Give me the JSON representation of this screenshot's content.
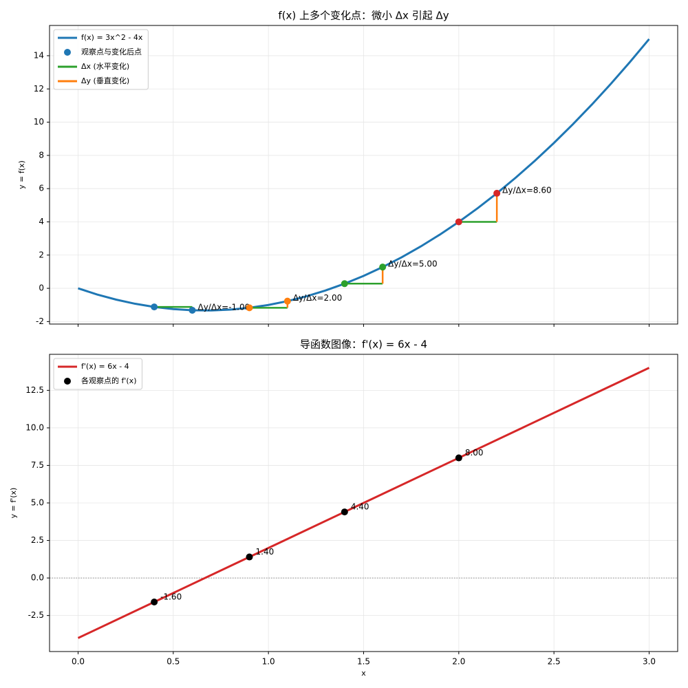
{
  "chart_data": [
    {
      "type": "line",
      "title": "f(x) 上多个变化点：微小 Δx 引起 Δy",
      "ylabel": "y = f(x)",
      "xlim": [
        -0.15,
        3.15
      ],
      "ylim": [
        -2.15,
        15.82
      ],
      "xticks": [
        0,
        0.5,
        1,
        1.5,
        2,
        2.5,
        3
      ],
      "show_xticklabels": false,
      "yticks": [
        -2,
        0,
        2,
        4,
        6,
        8,
        10,
        12,
        14
      ],
      "grid": true,
      "legend": "upper left",
      "series": [
        {
          "name": "f(x) = 3x^2 - 4x",
          "color": "#1f77b4",
          "x": [
            0,
            0.1,
            0.2,
            0.3,
            0.4,
            0.5,
            0.6,
            0.7,
            0.8,
            0.9,
            1,
            1.1,
            1.2,
            1.3,
            1.4,
            1.5,
            1.6,
            1.7,
            1.8,
            1.9,
            2,
            2.1,
            2.2,
            2.3,
            2.4,
            2.5,
            2.6,
            2.7,
            2.8,
            2.9,
            3
          ],
          "values": [
            0,
            -0.37,
            -0.68,
            -0.93,
            -1.12,
            -1.25,
            -1.32,
            -1.33,
            -1.28,
            -1.17,
            -1,
            -0.77,
            -0.48,
            -0.13,
            0.28,
            0.75,
            1.28,
            1.87,
            2.52,
            3.23,
            4,
            4.83,
            5.72,
            6.67,
            7.68,
            8.75,
            9.88,
            11.07,
            12.32,
            13.63,
            15
          ]
        }
      ],
      "points": {
        "name": "观察点与变化后点",
        "color": "#1f77b4",
        "colors": [
          "#1f77b4",
          "#ff7f0e",
          "#2ca02c",
          "#d62728"
        ],
        "x0": [
          0.4,
          0.9,
          1.4,
          2.0
        ],
        "y0": [
          -1.12,
          -1.17,
          0.28,
          4
        ],
        "x1": [
          0.6,
          1.1,
          1.6,
          2.2
        ],
        "y1": [
          -1.32,
          -0.77,
          1.28,
          5.72
        ]
      },
      "dx_line": {
        "name": "Δx (水平变化)",
        "color": "#2ca02c"
      },
      "dy_line": {
        "name": "Δy (垂直变化)",
        "color": "#ff7f0e"
      },
      "slopes": {
        "values": [
          -1,
          2,
          5,
          8.6
        ],
        "value_labels": [
          "Δy/Δx=-1.00",
          "Δy/Δx=2.00",
          "Δy/Δx=5.00",
          "Δy/Δx=8.60"
        ]
      }
    },
    {
      "type": "line",
      "title": "导函数图像：f'(x) = 6x - 4",
      "xlabel": "x",
      "ylabel": "y = f'(x)",
      "xlim": [
        -0.15,
        3.15
      ],
      "ylim": [
        -4.9,
        14.9
      ],
      "xticks": [
        {
          "value": 0,
          "label": "0.0"
        },
        0.5,
        {
          "value": 1,
          "label": "1.0"
        },
        1.5,
        {
          "value": 2,
          "label": "2.0"
        },
        2.5,
        {
          "value": 3,
          "label": "3.0"
        }
      ],
      "show_xticklabels": true,
      "yticks": [
        -2.5,
        {
          "value": 0,
          "label": "0.0"
        },
        2.5,
        {
          "value": 5,
          "label": "5.0"
        },
        7.5,
        {
          "value": 10,
          "label": "10.0"
        },
        12.5
      ],
      "grid": true,
      "legend": "upper left",
      "hline": 0,
      "series": [
        {
          "name": "f'(x) = 6x - 4",
          "color": "#d62728",
          "x": [
            0,
            3
          ],
          "values": [
            -4,
            14
          ]
        }
      ],
      "markers": {
        "name": "各观察点的 f'(x)",
        "color": "#000000",
        "x": [
          0.4,
          0.9,
          1.4,
          2.0
        ],
        "values": [
          -1.6,
          1.4,
          4.4,
          8
        ],
        "value_labels": [
          "-1.60",
          "1.40",
          "4.40",
          "8.00"
        ]
      }
    }
  ]
}
